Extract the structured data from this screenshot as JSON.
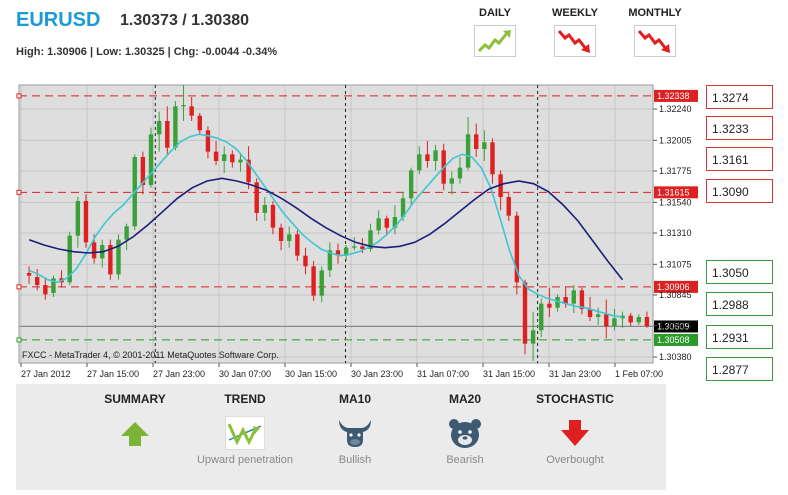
{
  "header": {
    "pair": "EURUSD",
    "quote": "1.30373 / 1.30380",
    "stats": "High: 1.30906 | Low: 1.30325 | Chg: -0.0044 -0.34%"
  },
  "timeframes": [
    {
      "label": "DAILY",
      "direction": "up",
      "icon": "trend-up-icon",
      "color": "#8cbf3a"
    },
    {
      "label": "WEEKLY",
      "direction": "down",
      "icon": "trend-down-icon",
      "color": "#e02020"
    },
    {
      "label": "MONTHLY",
      "direction": "down",
      "icon": "trend-down-icon",
      "color": "#e02020"
    }
  ],
  "chart_data": {
    "type": "candlestick",
    "ylim": [
      1.30335,
      1.3242
    ],
    "yticks": [
      "1.32240",
      "1.32005",
      "1.31775",
      "1.31540",
      "1.31310",
      "1.31075",
      "1.30845",
      "1.30615",
      "1.30380"
    ],
    "xticks": [
      "27 Jan 2012",
      "27 Jan 15:00",
      "27 Jan 23:00",
      "30 Jan 07:00",
      "30 Jan 15:00",
      "30 Jan 23:00",
      "31 Jan 07:00",
      "31 Jan 15:00",
      "31 Jan 23:00",
      "1 Feb 07:00"
    ],
    "grid": true,
    "watermark": "FXCC - MetaTrader 4, © 2001-2011 MetaQuotes Software Corp.",
    "colors": {
      "bull": "#3aa03a",
      "bear": "#dd2020",
      "ma_fast": "#3fc6d3",
      "ma_slow": "#1b1f7a",
      "background": "#dedede"
    },
    "hlines": [
      {
        "value": 1.32338,
        "label": "1.32338",
        "color": "#dd2020",
        "style": "dashed"
      },
      {
        "value": 1.31615,
        "label": "1.31615",
        "color": "#dd2020",
        "style": "dashed"
      },
      {
        "value": 1.30906,
        "label": "1.30906",
        "color": "#dd2020",
        "style": "dashed"
      },
      {
        "value": 1.30508,
        "label": "1.30508",
        "color": "#2a9a2a",
        "style": "dashed"
      },
      {
        "value": 1.30609,
        "label": "1.30609",
        "color": "#888888",
        "style": "solid"
      }
    ],
    "current_price": {
      "value": 1.30609,
      "label": "1.30609"
    },
    "candles": [
      [
        1.3101,
        1.3106,
        1.3093,
        1.3099
      ],
      [
        1.3098,
        1.3104,
        1.3088,
        1.3092
      ],
      [
        1.3092,
        1.3097,
        1.3081,
        1.3085
      ],
      [
        1.3086,
        1.3099,
        1.3083,
        1.3097
      ],
      [
        1.3097,
        1.3103,
        1.309,
        1.3094
      ],
      [
        1.3094,
        1.3132,
        1.3092,
        1.3129
      ],
      [
        1.3129,
        1.3158,
        1.312,
        1.3155
      ],
      [
        1.3155,
        1.316,
        1.312,
        1.3124
      ],
      [
        1.3124,
        1.313,
        1.3108,
        1.3112
      ],
      [
        1.3112,
        1.3126,
        1.3105,
        1.3122
      ],
      [
        1.3122,
        1.3126,
        1.3096,
        1.31
      ],
      [
        1.31,
        1.313,
        1.3096,
        1.3126
      ],
      [
        1.3126,
        1.3138,
        1.3118,
        1.3136
      ],
      [
        1.3136,
        1.319,
        1.3133,
        1.3188
      ],
      [
        1.3188,
        1.3192,
        1.316,
        1.3167
      ],
      [
        1.3167,
        1.321,
        1.3165,
        1.3205
      ],
      [
        1.3205,
        1.3222,
        1.3192,
        1.3215
      ],
      [
        1.3215,
        1.3226,
        1.319,
        1.3195
      ],
      [
        1.3195,
        1.323,
        1.3193,
        1.3226
      ],
      [
        1.3226,
        1.3242,
        1.3215,
        1.3227
      ],
      [
        1.3226,
        1.3233,
        1.3215,
        1.3219
      ],
      [
        1.3219,
        1.3221,
        1.3205,
        1.3208
      ],
      [
        1.3208,
        1.3211,
        1.3187,
        1.3192
      ],
      [
        1.3192,
        1.32,
        1.3182,
        1.3185
      ],
      [
        1.3185,
        1.3196,
        1.3176,
        1.319
      ],
      [
        1.319,
        1.3193,
        1.318,
        1.3184
      ],
      [
        1.3184,
        1.319,
        1.3177,
        1.3186
      ],
      [
        1.3186,
        1.3196,
        1.3164,
        1.3169
      ],
      [
        1.3169,
        1.3172,
        1.314,
        1.3146
      ],
      [
        1.3146,
        1.3158,
        1.314,
        1.3152
      ],
      [
        1.3152,
        1.3155,
        1.313,
        1.3135
      ],
      [
        1.3135,
        1.3138,
        1.3118,
        1.3125
      ],
      [
        1.3125,
        1.3136,
        1.312,
        1.313
      ],
      [
        1.313,
        1.3133,
        1.311,
        1.3114
      ],
      [
        1.3114,
        1.312,
        1.31,
        1.3106
      ],
      [
        1.3106,
        1.311,
        1.308,
        1.3084
      ],
      [
        1.3084,
        1.3106,
        1.3079,
        1.3103
      ],
      [
        1.3103,
        1.3124,
        1.3098,
        1.3118
      ],
      [
        1.3118,
        1.3123,
        1.3108,
        1.3114
      ],
      [
        1.3114,
        1.3122,
        1.311,
        1.312
      ],
      [
        1.312,
        1.3128,
        1.3118,
        1.3121
      ],
      [
        1.3121,
        1.3127,
        1.3116,
        1.3119
      ],
      [
        1.3119,
        1.3138,
        1.3117,
        1.3133
      ],
      [
        1.3133,
        1.3148,
        1.313,
        1.3142
      ],
      [
        1.3142,
        1.3144,
        1.3129,
        1.3135
      ],
      [
        1.3135,
        1.3152,
        1.313,
        1.3143
      ],
      [
        1.3143,
        1.3162,
        1.314,
        1.3157
      ],
      [
        1.3157,
        1.318,
        1.3152,
        1.3178
      ],
      [
        1.3178,
        1.3196,
        1.3175,
        1.319
      ],
      [
        1.319,
        1.32,
        1.318,
        1.3185
      ],
      [
        1.3185,
        1.3197,
        1.3178,
        1.3193
      ],
      [
        1.3193,
        1.3198,
        1.3163,
        1.3168
      ],
      [
        1.3168,
        1.3177,
        1.316,
        1.3172
      ],
      [
        1.3172,
        1.3188,
        1.3168,
        1.318
      ],
      [
        1.318,
        1.3218,
        1.3178,
        1.3205
      ],
      [
        1.3205,
        1.3213,
        1.3188,
        1.3194
      ],
      [
        1.3194,
        1.3208,
        1.3185,
        1.3199
      ],
      [
        1.3199,
        1.3202,
        1.3168,
        1.3175
      ],
      [
        1.3175,
        1.3178,
        1.3148,
        1.3158
      ],
      [
        1.3158,
        1.3162,
        1.314,
        1.3144
      ],
      [
        1.3144,
        1.3147,
        1.3085,
        1.3094
      ],
      [
        1.3094,
        1.3096,
        1.304,
        1.3048
      ],
      [
        1.3048,
        1.3072,
        1.3035,
        1.3058
      ],
      [
        1.3058,
        1.3082,
        1.3053,
        1.3078
      ],
      [
        1.3078,
        1.309,
        1.3068,
        1.3075
      ],
      [
        1.3075,
        1.3085,
        1.3072,
        1.3083
      ],
      [
        1.3083,
        1.3091,
        1.3075,
        1.3078
      ],
      [
        1.3078,
        1.3092,
        1.3071,
        1.3088
      ],
      [
        1.3088,
        1.309,
        1.307,
        1.3074
      ],
      [
        1.3074,
        1.3083,
        1.3065,
        1.3068
      ],
      [
        1.3068,
        1.3075,
        1.3062,
        1.307
      ],
      [
        1.307,
        1.3081,
        1.3052,
        1.3061
      ],
      [
        1.3061,
        1.3074,
        1.3058,
        1.3067
      ],
      [
        1.3067,
        1.3072,
        1.306,
        1.3069
      ],
      [
        1.3069,
        1.3071,
        1.3061,
        1.3064
      ],
      [
        1.3064,
        1.307,
        1.3062,
        1.3068
      ],
      [
        1.3068,
        1.3072,
        1.306,
        1.3061
      ]
    ],
    "ma_fast": [
      1.3103,
      1.31,
      1.3096,
      1.3094,
      1.3097,
      1.3104,
      1.3115,
      1.3128,
      1.3138,
      1.3146,
      1.3152,
      1.316,
      1.3168,
      1.3176,
      1.3184,
      1.3192,
      1.3199,
      1.3203,
      1.3205,
      1.3204,
      1.3202,
      1.3199,
      1.3194,
      1.3186,
      1.3176,
      1.3166,
      1.3156,
      1.3146,
      1.3138,
      1.313,
      1.3124,
      1.3119,
      1.3116,
      1.3114,
      1.3115,
      1.3117,
      1.312,
      1.3124,
      1.313,
      1.3137,
      1.3146,
      1.3156,
      1.3164,
      1.3172,
      1.318,
      1.3187,
      1.319,
      1.3188,
      1.318,
      1.3165,
      1.3142,
      1.3118,
      1.3099,
      1.3089,
      1.3085,
      1.3082,
      1.308,
      1.3078,
      1.3076,
      1.3075,
      1.3073,
      1.3071,
      1.3069,
      1.3068
    ],
    "ma_slow": [
      1.3126,
      1.3122,
      1.3119,
      1.3117,
      1.3116,
      1.3117,
      1.3121,
      1.3128,
      1.3137,
      1.3147,
      1.3157,
      1.3165,
      1.317,
      1.3172,
      1.317,
      1.3167,
      1.3163,
      1.3157,
      1.315,
      1.3142,
      1.3135,
      1.3129,
      1.3124,
      1.3121,
      1.312,
      1.3121,
      1.3124,
      1.313,
      1.3138,
      1.3147,
      1.3156,
      1.3164,
      1.3168,
      1.317,
      1.3168,
      1.3162,
      1.3152,
      1.314,
      1.3125,
      1.311,
      1.3096
    ],
    "ma_fast_start": 0,
    "ma_slow_start": 0
  },
  "levels": {
    "resistance": [
      "1.3274",
      "1.3233",
      "1.3161",
      "1.3090"
    ],
    "support": [
      "1.3050",
      "1.2988",
      "1.2931",
      "1.2877"
    ]
  },
  "indicators": [
    {
      "title": "SUMMARY",
      "icon": "up-arrow-icon",
      "subtitle": "",
      "color": "#7cb334"
    },
    {
      "title": "TREND",
      "icon": "trend-chart-icon",
      "subtitle": "Upward penetration",
      "color": "#8cbf3a"
    },
    {
      "title": "MA10",
      "icon": "bull-icon",
      "subtitle": "Bullish",
      "color": "#3c5a72"
    },
    {
      "title": "MA20",
      "icon": "bear-icon",
      "subtitle": "Bearish",
      "color": "#3c5a72"
    },
    {
      "title": "STOCHASTIC",
      "icon": "down-arrow-icon",
      "subtitle": "Overbought",
      "color": "#e02020"
    }
  ]
}
